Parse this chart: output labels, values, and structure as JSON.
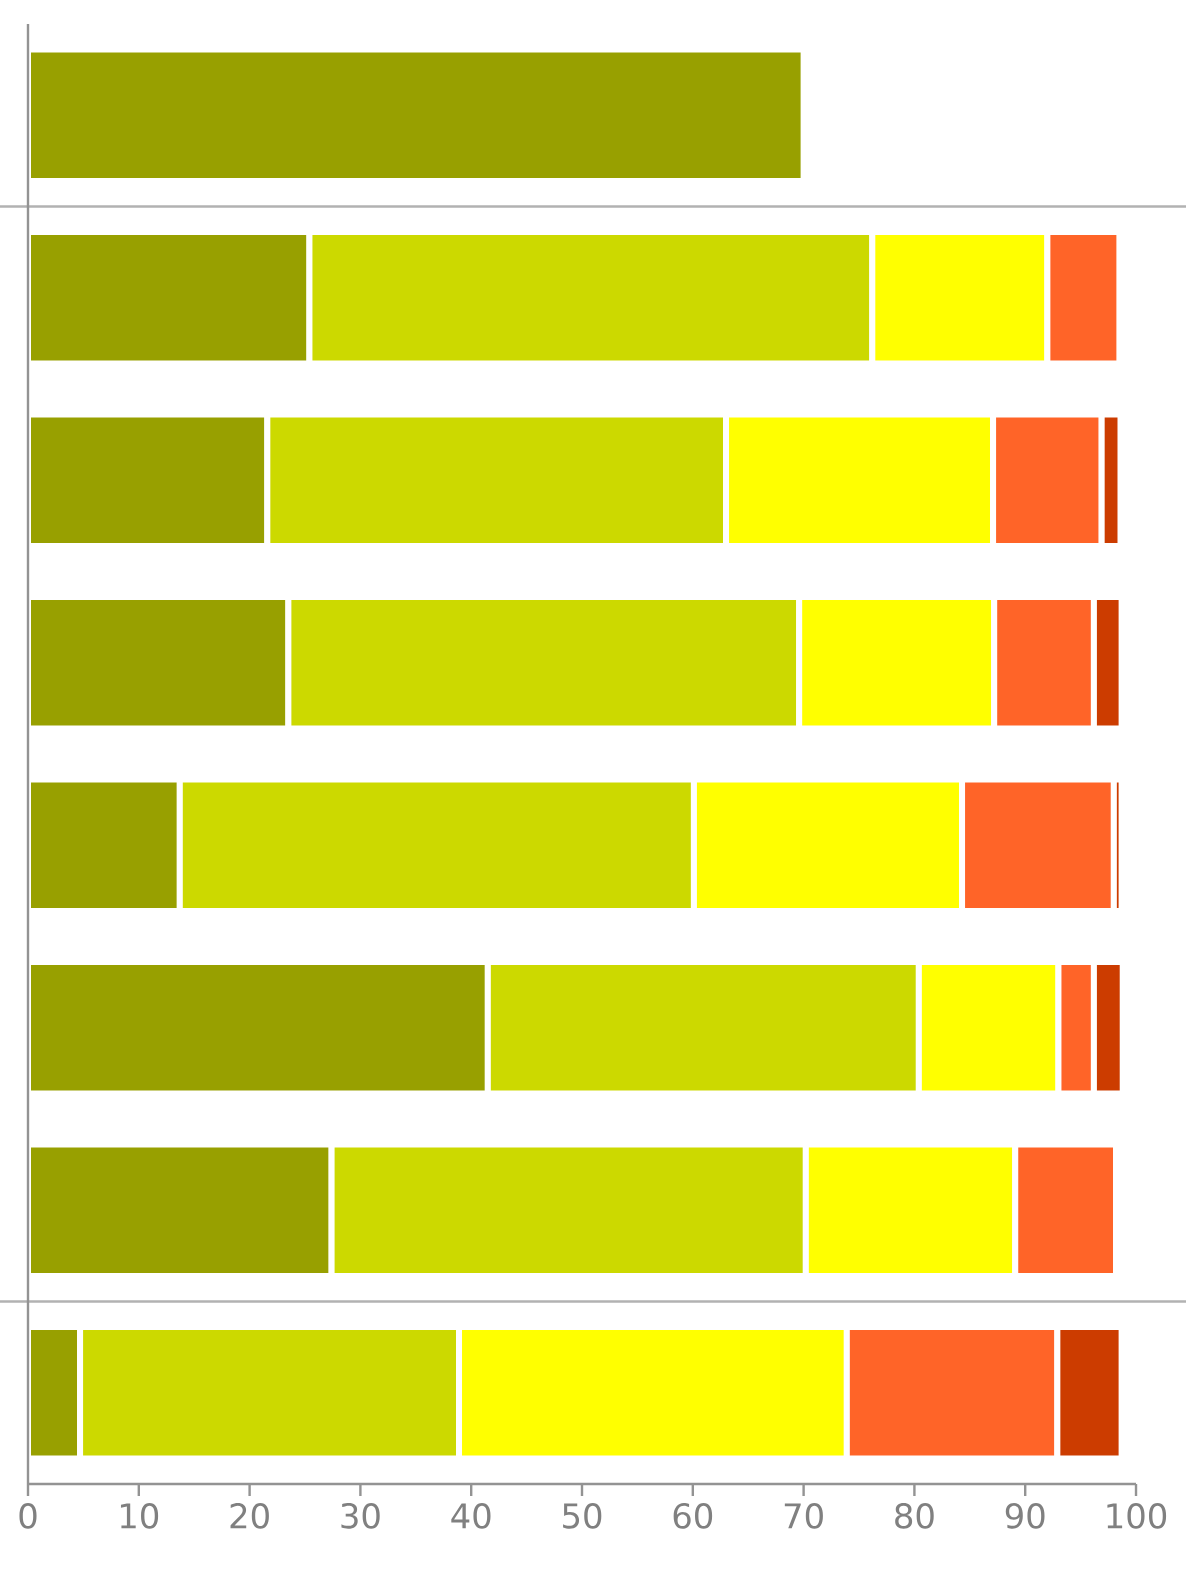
{
  "chart_data": {
    "type": "bar",
    "orientation": "horizontal",
    "stacked": true,
    "categories": [
      null,
      null,
      null,
      null,
      null,
      null,
      null,
      null
    ],
    "series": [
      {
        "color": "#98a000",
        "values": [
          70,
          25.4,
          21.6,
          23.5,
          13.7,
          41.5,
          27.4,
          4.7
        ]
      },
      {
        "color": "#ccd900",
        "values": [
          null,
          50.8,
          41.4,
          46.1,
          46.4,
          38.9,
          42.8,
          34.2
        ]
      },
      {
        "color": "#ffff00",
        "values": [
          null,
          15.8,
          24.1,
          17.6,
          24.2,
          12.6,
          18.9,
          35.0
        ]
      },
      {
        "color": "#ff6428",
        "values": [
          null,
          6.5,
          9.8,
          9.0,
          13.7,
          3.2,
          9.1,
          19.0
        ]
      },
      {
        "color": "#cc3c00",
        "values": [
          null,
          null,
          1.7,
          2.5,
          0.7,
          2.6,
          0.5,
          5.8
        ]
      }
    ],
    "xlim": [
      0,
      100
    ],
    "xticks": [
      0,
      10,
      20,
      30,
      40,
      50,
      60,
      70,
      80,
      90,
      100
    ],
    "grid": false
  }
}
